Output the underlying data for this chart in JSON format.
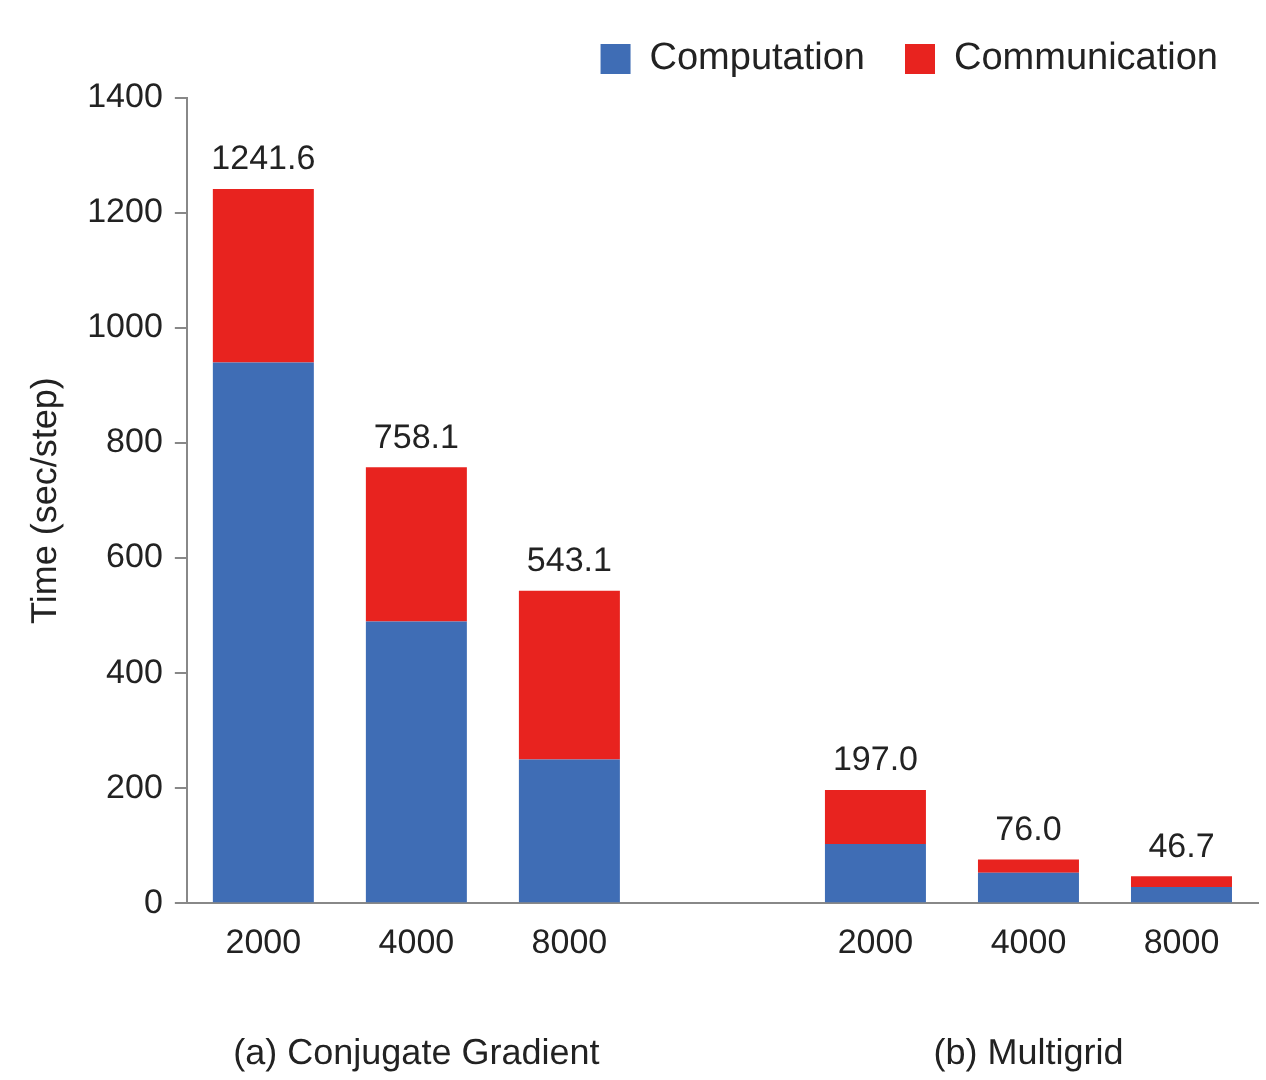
{
  "chart_data": {
    "type": "bar",
    "stacked": true,
    "ylabel": "Time (sec/step)",
    "categories": [
      "2000",
      "4000",
      "8000",
      null,
      "2000",
      "4000",
      "8000"
    ],
    "series": [
      {
        "name": "Computation",
        "color": "#3f6db5",
        "values": [
          940,
          490,
          250,
          null,
          103,
          53,
          28
        ]
      },
      {
        "name": "Communication",
        "color": "#e8231f",
        "values": [
          301.6,
          268.1,
          293.1,
          null,
          94,
          23,
          18.7
        ]
      }
    ],
    "totals": [
      "1241.6",
      "758.1",
      "543.1",
      null,
      "197.0",
      "76.0",
      "46.7"
    ],
    "ylim": [
      0,
      1400
    ],
    "yticks": [
      0,
      200,
      400,
      600,
      800,
      1000,
      1200,
      1400
    ],
    "grid": false,
    "legend": "top right",
    "annotations": [
      "(a) Conjugate Gradient",
      "(b) Multigrid"
    ]
  }
}
